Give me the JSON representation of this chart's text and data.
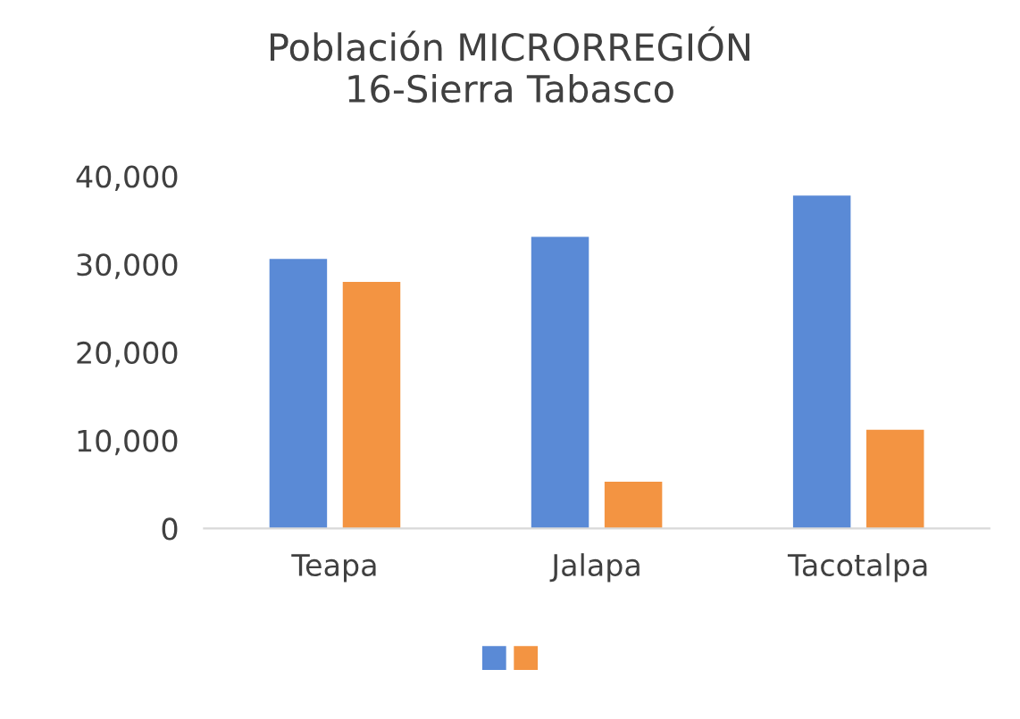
{
  "chart_data": {
    "type": "bar",
    "title": "Población MICRORREGIÓN 16-Sierra Tabasco",
    "categories": [
      "Teapa",
      "Jalapa",
      "Tacotalpa"
    ],
    "series": [
      {
        "color": "#5a8ad6",
        "values": [
          30600,
          33100,
          37800
        ]
      },
      {
        "color": "#f39442",
        "values": [
          28000,
          5300,
          11200
        ]
      }
    ],
    "ylim": [
      0,
      40000
    ],
    "yticks": [
      {
        "value": 0,
        "label": "0"
      },
      {
        "value": 10000,
        "label": "10,000"
      },
      {
        "value": 20000,
        "label": "20,000"
      },
      {
        "value": 30000,
        "label": "30,000"
      },
      {
        "value": 40000,
        "label": "40,000"
      }
    ],
    "grid": false
  }
}
